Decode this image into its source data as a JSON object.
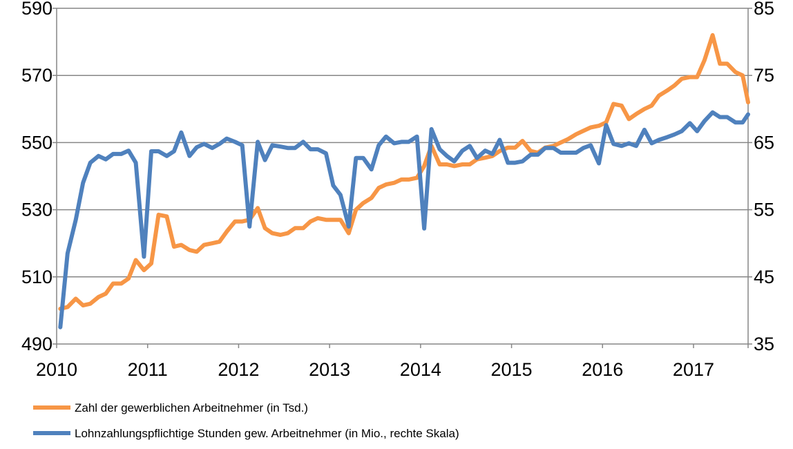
{
  "chart_data": {
    "type": "line",
    "title": "",
    "xlabel": "",
    "ylabel_left": "",
    "ylabel_right": "",
    "x_tick_labels": [
      "2010",
      "2011",
      "2012",
      "2013",
      "2014",
      "2015",
      "2016",
      "2017"
    ],
    "left_axis": {
      "range": [
        490,
        590
      ],
      "ticks": [
        490,
        510,
        530,
        550,
        570,
        590
      ]
    },
    "right_axis": {
      "range": [
        35,
        85
      ],
      "ticks": [
        35,
        45,
        55,
        65,
        75,
        85
      ]
    },
    "grid": "horizontal",
    "legend_position": "bottom-left",
    "x_domain": [
      2010.0,
      2017.6
    ],
    "series": [
      {
        "name": "Zahl der gewerblichen Arbeitnehmer (in Tsd.)",
        "axis": "left",
        "color": "#F79646",
        "x": [
          2010.04,
          2010.12,
          2010.21,
          2010.29,
          2010.37,
          2010.46,
          2010.54,
          2010.62,
          2010.71,
          2010.79,
          2010.87,
          2010.96,
          2011.04,
          2011.12,
          2011.21,
          2011.29,
          2011.37,
          2011.46,
          2011.54,
          2011.62,
          2011.71,
          2011.79,
          2011.87,
          2011.96,
          2012.04,
          2012.12,
          2012.21,
          2012.29,
          2012.37,
          2012.46,
          2012.54,
          2012.62,
          2012.71,
          2012.79,
          2012.87,
          2012.96,
          2013.04,
          2013.12,
          2013.21,
          2013.29,
          2013.37,
          2013.46,
          2013.54,
          2013.62,
          2013.71,
          2013.79,
          2013.87,
          2013.96,
          2014.04,
          2014.12,
          2014.21,
          2014.29,
          2014.37,
          2014.46,
          2014.54,
          2014.62,
          2014.71,
          2014.79,
          2014.87,
          2014.96,
          2015.04,
          2015.12,
          2015.21,
          2015.29,
          2015.37,
          2015.46,
          2015.54,
          2015.62,
          2015.71,
          2015.79,
          2015.87,
          2015.96,
          2016.04,
          2016.12,
          2016.21,
          2016.29,
          2016.37,
          2016.46,
          2016.54,
          2016.62,
          2016.71,
          2016.79,
          2016.87,
          2016.96,
          2017.04,
          2017.12,
          2017.21,
          2017.29,
          2017.37,
          2017.46,
          2017.54,
          2017.6
        ],
        "values": [
          500.5,
          501,
          503.5,
          501.5,
          502,
          504,
          505,
          508,
          508,
          509.5,
          515,
          512,
          514,
          528.5,
          528,
          519,
          519.5,
          518,
          517.5,
          519.5,
          520,
          520.5,
          523.5,
          526.5,
          526.5,
          527,
          530.5,
          524.5,
          523,
          522.5,
          523,
          524.5,
          524.5,
          526.5,
          527.5,
          527,
          527,
          527,
          523,
          530,
          532,
          533.5,
          536.5,
          537.5,
          538,
          539,
          539,
          539.5,
          543,
          549,
          543.5,
          543.5,
          543,
          543.5,
          543.5,
          545,
          545.5,
          546,
          547.5,
          548.5,
          548.5,
          550.5,
          547.5,
          547,
          548.5,
          549,
          550,
          551,
          552.5,
          553.5,
          554.5,
          555,
          556,
          561.5,
          561,
          557,
          558.5,
          560,
          561,
          564,
          565.5,
          567,
          569,
          569.5,
          569.5,
          574.5,
          582,
          573.5,
          573.5,
          571,
          570,
          562
        ]
      },
      {
        "name": "Lohnzahlungspflichtige Stunden gew. Arbeitnehmer (in Mio.,  rechte Skala)",
        "axis": "right",
        "color": "#4F81BD",
        "x": [
          2010.04,
          2010.12,
          2010.21,
          2010.29,
          2010.37,
          2010.46,
          2010.54,
          2010.62,
          2010.71,
          2010.79,
          2010.87,
          2010.96,
          2011.04,
          2011.12,
          2011.21,
          2011.29,
          2011.37,
          2011.46,
          2011.54,
          2011.62,
          2011.71,
          2011.79,
          2011.87,
          2011.96,
          2012.04,
          2012.12,
          2012.21,
          2012.29,
          2012.37,
          2012.46,
          2012.54,
          2012.62,
          2012.71,
          2012.79,
          2012.87,
          2012.96,
          2013.04,
          2013.12,
          2013.21,
          2013.29,
          2013.37,
          2013.46,
          2013.54,
          2013.62,
          2013.71,
          2013.79,
          2013.87,
          2013.96,
          2014.04,
          2014.12,
          2014.21,
          2014.29,
          2014.37,
          2014.46,
          2014.54,
          2014.62,
          2014.71,
          2014.79,
          2014.87,
          2014.96,
          2015.04,
          2015.12,
          2015.21,
          2015.29,
          2015.37,
          2015.46,
          2015.54,
          2015.62,
          2015.71,
          2015.79,
          2015.87,
          2015.96,
          2016.04,
          2016.12,
          2016.21,
          2016.29,
          2016.37,
          2016.46,
          2016.54,
          2016.62,
          2016.71,
          2016.79,
          2016.87,
          2016.96,
          2017.04,
          2017.12,
          2017.21,
          2017.29,
          2017.37,
          2017.46,
          2017.54,
          2017.6
        ],
        "values": [
          37.5,
          48.5,
          53.5,
          59,
          62,
          63,
          62.5,
          63.3,
          63.3,
          63.8,
          62,
          48,
          63.7,
          63.7,
          63,
          63.7,
          66.5,
          63,
          64.3,
          64.8,
          64.2,
          64.8,
          65.6,
          65.1,
          64.6,
          52.5,
          65.1,
          62.4,
          64.6,
          64.4,
          64.2,
          64.2,
          65.1,
          64,
          64,
          63.4,
          58.6,
          57.2,
          52.5,
          62.7,
          62.7,
          61,
          64.6,
          65.9,
          64.9,
          65.1,
          65.1,
          65.9,
          52.2,
          67,
          64,
          63,
          62.2,
          63.8,
          64.5,
          62.7,
          63.8,
          63.3,
          65.4,
          62,
          62,
          62.2,
          63.2,
          63.2,
          64.2,
          64.2,
          63.5,
          63.5,
          63.5,
          64.2,
          64.6,
          61.9,
          67.6,
          64.8,
          64.5,
          64.9,
          64.5,
          66.9,
          64.9,
          65.4,
          65.8,
          66.2,
          66.7,
          67.9,
          66.7,
          68.2,
          69.5,
          68.8,
          68.8,
          68,
          68,
          69.2
        ]
      }
    ]
  }
}
